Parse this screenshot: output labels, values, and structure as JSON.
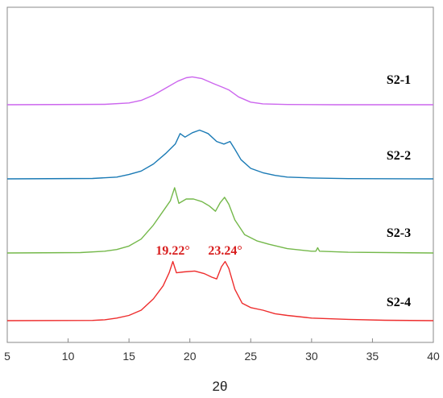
{
  "chart_data": {
    "type": "line",
    "xlabel": "2θ",
    "ylabel": "",
    "xlim": [
      5,
      40
    ],
    "x_ticks": [
      5,
      10,
      15,
      20,
      25,
      30,
      35,
      40
    ],
    "x_tick_labels": [
      "5",
      "10",
      "15",
      "20",
      "25",
      "30",
      "35",
      "40"
    ],
    "y_ticks": false,
    "grid": false,
    "legend": "none",
    "series": [
      {
        "name": "S2-1",
        "color": "#cc66ee",
        "points": [
          [
            5,
            0
          ],
          [
            13,
            0.5
          ],
          [
            15,
            2
          ],
          [
            16,
            5
          ],
          [
            17,
            11
          ],
          [
            18,
            19
          ],
          [
            19,
            27
          ],
          [
            19.7,
            31
          ],
          [
            20.2,
            32
          ],
          [
            21,
            30
          ],
          [
            22,
            24
          ],
          [
            22.7,
            20
          ],
          [
            23.2,
            17
          ],
          [
            24,
            9
          ],
          [
            25,
            3
          ],
          [
            26,
            1
          ],
          [
            28,
            0.3
          ],
          [
            32,
            0
          ],
          [
            40,
            0
          ]
        ]
      },
      {
        "name": "S2-2",
        "color": "#1a7ab5",
        "points": [
          [
            5,
            0
          ],
          [
            12,
            0.5
          ],
          [
            14,
            2
          ],
          [
            15,
            5
          ],
          [
            16,
            9
          ],
          [
            17,
            17
          ],
          [
            18,
            29
          ],
          [
            18.8,
            40
          ],
          [
            19.2,
            52
          ],
          [
            19.6,
            48
          ],
          [
            20.2,
            53
          ],
          [
            20.8,
            56
          ],
          [
            21.5,
            52
          ],
          [
            22.2,
            43
          ],
          [
            22.8,
            40
          ],
          [
            23.3,
            43
          ],
          [
            23.7,
            34
          ],
          [
            24.2,
            22
          ],
          [
            25,
            12
          ],
          [
            26,
            7
          ],
          [
            27,
            4
          ],
          [
            28,
            2
          ],
          [
            30,
            1
          ],
          [
            33,
            0.3
          ],
          [
            40,
            0
          ]
        ]
      },
      {
        "name": "S2-3",
        "color": "#74b84a",
        "points": [
          [
            5,
            0
          ],
          [
            11,
            0.5
          ],
          [
            13,
            2
          ],
          [
            14,
            4
          ],
          [
            15,
            8
          ],
          [
            16,
            16
          ],
          [
            17,
            32
          ],
          [
            18,
            52
          ],
          [
            18.4,
            60
          ],
          [
            18.75,
            75
          ],
          [
            19.1,
            57
          ],
          [
            19.7,
            62
          ],
          [
            20.3,
            62
          ],
          [
            21,
            59
          ],
          [
            21.6,
            54
          ],
          [
            22.1,
            48
          ],
          [
            22.5,
            58
          ],
          [
            22.85,
            64
          ],
          [
            23.2,
            56
          ],
          [
            23.7,
            38
          ],
          [
            24.5,
            21
          ],
          [
            25.5,
            14
          ],
          [
            26.5,
            10
          ],
          [
            28,
            5
          ],
          [
            30,
            2
          ],
          [
            30.35,
            2
          ],
          [
            30.5,
            6
          ],
          [
            30.65,
            2
          ],
          [
            33,
            0.8
          ],
          [
            40,
            0
          ]
        ]
      },
      {
        "name": "S2-4",
        "color": "#ee2d2d",
        "points": [
          [
            5,
            0
          ],
          [
            12,
            0.3
          ],
          [
            13,
            1
          ],
          [
            14,
            3
          ],
          [
            15,
            6
          ],
          [
            16,
            12
          ],
          [
            17,
            25
          ],
          [
            17.8,
            40
          ],
          [
            18.3,
            55
          ],
          [
            18.6,
            68
          ],
          [
            18.9,
            55
          ],
          [
            19.5,
            56
          ],
          [
            20.4,
            57
          ],
          [
            21.2,
            54
          ],
          [
            21.8,
            50
          ],
          [
            22.2,
            48
          ],
          [
            22.6,
            62
          ],
          [
            22.9,
            68
          ],
          [
            23.2,
            60
          ],
          [
            23.7,
            36
          ],
          [
            24.3,
            20
          ],
          [
            25,
            15
          ],
          [
            26,
            12
          ],
          [
            27,
            8
          ],
          [
            28,
            6
          ],
          [
            30,
            3
          ],
          [
            33,
            1.5
          ],
          [
            36,
            0.5
          ],
          [
            40,
            0
          ]
        ]
      }
    ],
    "annotations": [
      {
        "text": "19.22°",
        "x": 18.6
      },
      {
        "text": "23.24°",
        "x": 22.9
      }
    ]
  }
}
